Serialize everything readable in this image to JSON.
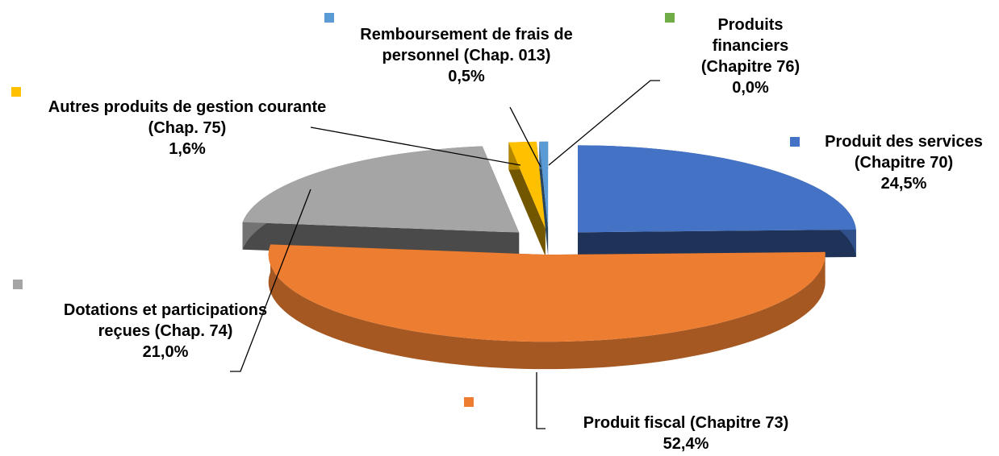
{
  "chart_data": {
    "type": "pie",
    "categories": [
      "Produit des services (Chapitre 70)",
      "Produit fiscal (Chapitre 73)",
      "Dotations et participations reçues (Chap. 74)",
      "Autres produits de gestion courante (Chap. 75)",
      "Remboursement de frais de personnel (Chap. 013)",
      "Produits financiers (Chapitre 76)"
    ],
    "values": [
      24.5,
      52.4,
      21.0,
      1.6,
      0.5,
      0.0
    ],
    "value_labels": [
      "24,5%",
      "52,4%",
      "21,0%",
      "1,6%",
      "0,5%",
      "0,0%"
    ],
    "colors": [
      "#4472c4",
      "#ed7d31",
      "#a5a5a5",
      "#ffc000",
      "#5b9bd5",
      "#70ad47"
    ]
  }
}
